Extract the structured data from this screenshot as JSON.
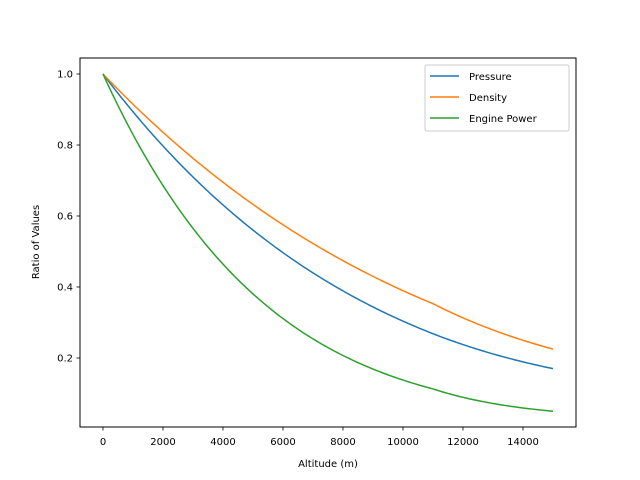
{
  "chart_data": {
    "type": "line",
    "title": "",
    "xlabel": "Altitude (m)",
    "ylabel": "Ratio of Values",
    "xlim": [
      -750,
      15750
    ],
    "ylim": [
      0.004,
      1.045
    ],
    "xticks": [
      0,
      2000,
      4000,
      6000,
      8000,
      10000,
      12000,
      14000
    ],
    "yticks": [
      0.2,
      0.4,
      0.6,
      0.8,
      1.0
    ],
    "xtick_labels": [
      "0",
      "2000",
      "4000",
      "6000",
      "8000",
      "10000",
      "12000",
      "14000"
    ],
    "ytick_labels": [
      "0.2",
      "0.4",
      "0.6",
      "0.8",
      "1.0"
    ],
    "grid": false,
    "legend_position": "upper right",
    "x": [
      0,
      1000,
      2000,
      3000,
      4000,
      5000,
      6000,
      7000,
      8000,
      9000,
      10000,
      11000,
      12000,
      13000,
      14000,
      15000
    ],
    "series": [
      {
        "name": "Pressure",
        "color": "#1f77b4",
        "values": [
          1.0,
          0.887,
          0.785,
          0.692,
          0.608,
          0.533,
          0.466,
          0.405,
          0.351,
          0.303,
          0.261,
          0.224,
          0.197,
          0.174,
          0.153,
          0.169
        ]
      },
      {
        "name": "Density",
        "color": "#ff7f0e",
        "values": [
          1.0,
          0.907,
          0.822,
          0.742,
          0.669,
          0.601,
          0.539,
          0.482,
          0.429,
          0.381,
          0.338,
          0.297,
          0.254,
          0.217,
          0.185,
          0.158
        ]
      },
      {
        "name": "Engine Power",
        "color": "#2ca02c",
        "values": [
          1.0,
          0.82,
          0.67,
          0.55,
          0.45,
          0.37,
          0.31,
          0.26,
          0.215,
          0.18,
          0.15,
          0.125,
          0.1,
          0.08,
          0.065,
          0.05
        ]
      }
    ]
  },
  "legend": {
    "items": [
      {
        "label": "Pressure",
        "color": "#1f77b4"
      },
      {
        "label": "Density",
        "color": "#ff7f0e"
      },
      {
        "label": "Engine Power",
        "color": "#2ca02c"
      }
    ]
  },
  "axes": {
    "xlabel": "Altitude (m)",
    "ylabel": "Ratio of Values"
  }
}
